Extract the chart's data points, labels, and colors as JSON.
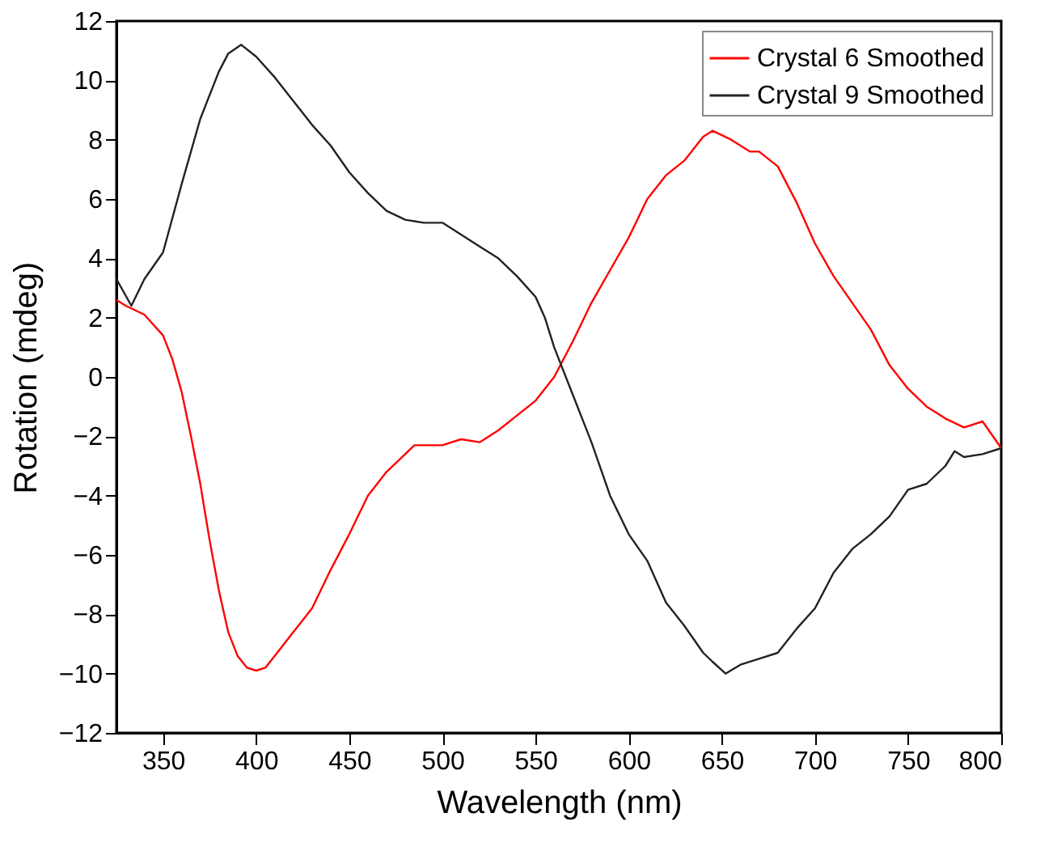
{
  "chart_data": {
    "type": "line",
    "xlabel": "Wavelength (nm)",
    "ylabel": "Rotation (mdeg)",
    "xlim": [
      325,
      800
    ],
    "xticks": [
      350,
      400,
      450,
      500,
      550,
      600,
      650,
      700,
      750,
      800
    ],
    "ylim": [
      -12,
      12
    ],
    "yticks": [
      -12,
      -10,
      -8,
      -6,
      -4,
      -2,
      0,
      2,
      4,
      6,
      8,
      10,
      12
    ],
    "grid": false,
    "legend": "top right",
    "marker": "none",
    "line_style": "solid",
    "series": [
      {
        "name": "Crystal 6 Smoothed",
        "color": "#ff0000",
        "x": [
          325,
          330,
          340,
          350,
          355,
          360,
          365,
          370,
          375,
          380,
          385,
          390,
          395,
          400,
          405,
          410,
          420,
          430,
          440,
          450,
          460,
          470,
          480,
          485,
          490,
          500,
          510,
          520,
          530,
          540,
          550,
          560,
          570,
          580,
          590,
          600,
          610,
          620,
          630,
          640,
          645,
          655,
          665,
          670,
          680,
          690,
          700,
          710,
          720,
          730,
          740,
          750,
          760,
          770,
          780,
          790,
          800
        ],
        "values": [
          2.6,
          2.4,
          2.1,
          1.4,
          0.6,
          -0.5,
          -2.0,
          -3.6,
          -5.5,
          -7.2,
          -8.6,
          -9.4,
          -9.8,
          -9.9,
          -9.8,
          -9.4,
          -8.6,
          -7.8,
          -6.5,
          -5.3,
          -4.0,
          -3.2,
          -2.6,
          -2.3,
          -2.3,
          -2.3,
          -2.1,
          -2.2,
          -1.8,
          -1.3,
          -0.8,
          0.0,
          1.2,
          2.5,
          3.6,
          4.7,
          6.0,
          6.8,
          7.3,
          8.1,
          8.3,
          8.0,
          7.6,
          7.6,
          7.1,
          5.9,
          4.5,
          3.4,
          2.5,
          1.6,
          0.4,
          -0.4,
          -1.0,
          -1.4,
          -1.7,
          -1.5,
          -2.4
        ]
      },
      {
        "name": "Crystal 9 Smoothed",
        "color": "#222222",
        "x": [
          325,
          333,
          340,
          350,
          360,
          370,
          380,
          385,
          392,
          400,
          410,
          420,
          430,
          440,
          450,
          460,
          470,
          480,
          490,
          500,
          510,
          520,
          530,
          540,
          550,
          555,
          560,
          570,
          580,
          590,
          600,
          610,
          620,
          630,
          640,
          645,
          652,
          660,
          670,
          680,
          690,
          700,
          710,
          720,
          730,
          740,
          750,
          760,
          770,
          775,
          780,
          790,
          800
        ],
        "values": [
          3.3,
          2.4,
          3.3,
          4.2,
          6.5,
          8.7,
          10.3,
          10.9,
          11.2,
          10.8,
          10.1,
          9.3,
          8.5,
          7.8,
          6.9,
          6.2,
          5.6,
          5.3,
          5.2,
          5.2,
          4.8,
          4.4,
          4.0,
          3.4,
          2.7,
          2.0,
          1.0,
          -0.6,
          -2.2,
          -4.0,
          -5.3,
          -6.2,
          -7.6,
          -8.4,
          -9.3,
          -9.6,
          -10.0,
          -9.7,
          -9.5,
          -9.3,
          -8.5,
          -7.8,
          -6.6,
          -5.8,
          -5.3,
          -4.7,
          -3.8,
          -3.6,
          -3.0,
          -2.5,
          -2.7,
          -2.6,
          -2.4
        ]
      }
    ]
  }
}
